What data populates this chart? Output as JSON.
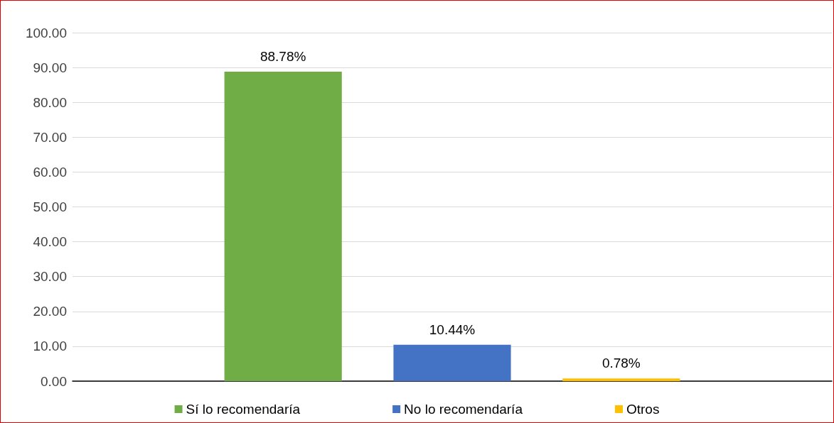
{
  "chart_data": {
    "type": "bar",
    "categories": [
      null
    ],
    "series": [
      {
        "name": "Sí lo recomendaría",
        "color": "#70ad47",
        "values": [
          88.78
        ],
        "value_labels": [
          "88.78%"
        ]
      },
      {
        "name": "No lo recomendaría",
        "color": "#4472c4",
        "values": [
          10.44
        ],
        "value_labels": [
          "10.44%"
        ]
      },
      {
        "name": "Otros",
        "color": "#ffc000",
        "values": [
          0.78
        ],
        "value_labels": [
          "0.78%"
        ]
      }
    ],
    "ylim": [
      0,
      100
    ],
    "yticks": [
      {
        "value": 0,
        "label": "0.00"
      },
      {
        "value": 10,
        "label": "10.00"
      },
      {
        "value": 20,
        "label": "20.00"
      },
      {
        "value": 30,
        "label": "30.00"
      },
      {
        "value": 40,
        "label": "40.00"
      },
      {
        "value": 50,
        "label": "50.00"
      },
      {
        "value": 60,
        "label": "60.00"
      },
      {
        "value": 70,
        "label": "70.00"
      },
      {
        "value": 80,
        "label": "80.00"
      },
      {
        "value": 90,
        "label": "90.00"
      },
      {
        "value": 100,
        "label": "100.00"
      }
    ],
    "grid": "y",
    "legend": "bottom"
  }
}
